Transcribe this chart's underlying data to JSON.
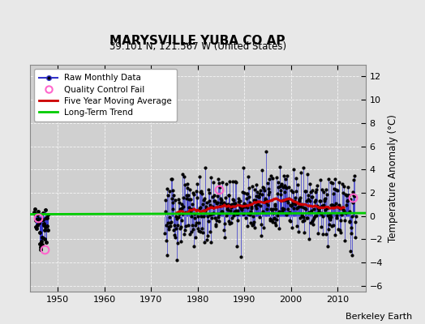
{
  "title": "MARYSVILLE YUBA CO AP",
  "subtitle": "39.101 N, 121.567 W (United States)",
  "ylabel": "Temperature Anomaly (°C)",
  "credit": "Berkeley Earth",
  "xlim": [
    1944,
    2016
  ],
  "ylim": [
    -6.5,
    13
  ],
  "yticks": [
    -6,
    -4,
    -2,
    0,
    2,
    4,
    6,
    8,
    10,
    12
  ],
  "xticks": [
    1950,
    1960,
    1970,
    1980,
    1990,
    2000,
    2010
  ],
  "fig_bg_color": "#e8e8e8",
  "plot_bg_color": "#d0d0d0",
  "raw_color": "#3333cc",
  "dot_color": "#000000",
  "qc_color": "#ff66cc",
  "ma_color": "#cc0000",
  "trend_color": "#00cc00",
  "trend_x": [
    1944,
    2016
  ],
  "trend_y": [
    0.15,
    0.25
  ],
  "seed_early": 42,
  "seed_main": 123
}
